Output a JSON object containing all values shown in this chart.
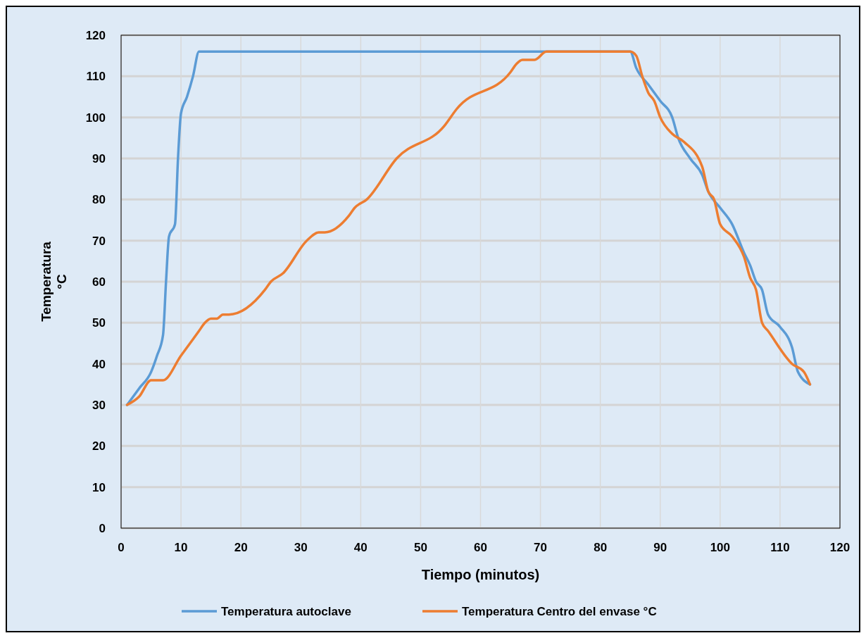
{
  "chart_data": {
    "type": "line",
    "xlabel": "Tiempo (minutos)",
    "ylabel": "Temperatura °C",
    "xlim": [
      0,
      120
    ],
    "xticks": [
      0,
      10,
      20,
      30,
      40,
      50,
      60,
      70,
      80,
      90,
      100,
      110,
      120
    ],
    "ylim": [
      0,
      120
    ],
    "yticks": [
      0,
      10,
      20,
      30,
      40,
      50,
      60,
      70,
      80,
      90,
      100,
      110,
      120
    ],
    "grid": true,
    "legend": "bottom",
    "marker": "none",
    "line_style": "solid",
    "series": [
      {
        "name": "Temperatura autoclave",
        "color": "#5b9bd5",
        "x": [
          1,
          3,
          5,
          6,
          7,
          7.5,
          8,
          9,
          9.5,
          10,
          11,
          12,
          13,
          14,
          85,
          86,
          88,
          90,
          92,
          93,
          95,
          97,
          98,
          100,
          102,
          104,
          105,
          106,
          107,
          108,
          110,
          112,
          113,
          115
        ],
        "values": [
          30,
          34,
          38,
          42,
          47,
          60,
          71,
          74,
          90,
          101,
          105,
          110,
          116,
          116,
          116,
          112,
          108,
          104,
          100,
          95,
          90,
          86,
          82,
          78,
          74,
          67,
          64,
          60,
          58,
          52,
          49,
          44,
          38,
          35
        ]
      },
      {
        "name": "Temperatura Centro del envase °C",
        "color": "#ed7d31",
        "x": [
          1,
          3,
          5,
          6,
          7,
          10,
          13,
          14,
          15,
          16,
          17,
          18,
          24,
          25,
          27,
          31,
          33,
          34,
          38,
          39,
          41,
          46,
          54,
          56,
          65,
          66,
          67,
          69,
          71,
          85,
          86,
          87,
          88,
          89,
          90,
          92,
          94,
          97,
          98,
          99,
          100,
          102,
          104,
          105,
          106,
          107,
          108,
          112,
          114,
          115
        ],
        "values": [
          30,
          32,
          36,
          36,
          36,
          42,
          48,
          50,
          51,
          51,
          52,
          52,
          58,
          60,
          62,
          70,
          72,
          72,
          76,
          78,
          80,
          90,
          98,
          102,
          111,
          113,
          114,
          114,
          116,
          116,
          115,
          110,
          106,
          104,
          100,
          96,
          94,
          88,
          82,
          80,
          74,
          71,
          66,
          61,
          58,
          50,
          48,
          40,
          38,
          35
        ]
      }
    ]
  }
}
